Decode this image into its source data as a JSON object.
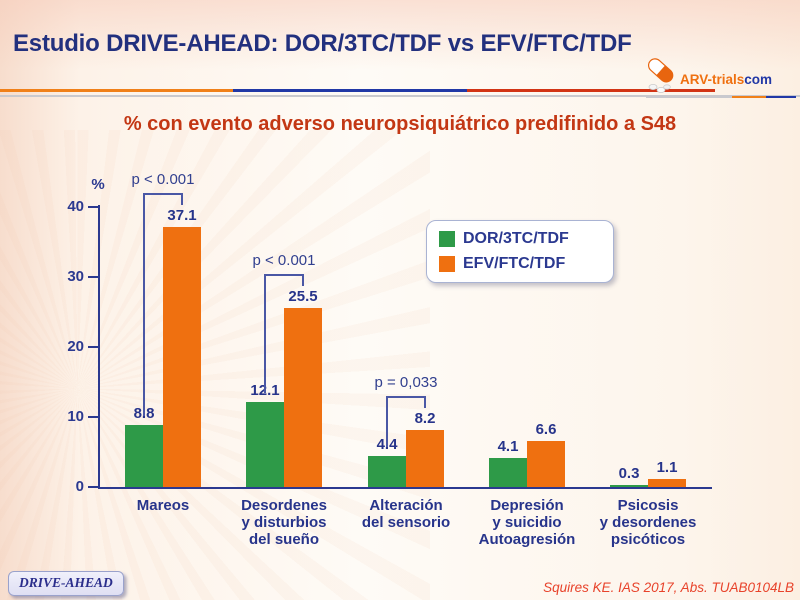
{
  "slide": {
    "title": "Estudio DRIVE-AHEAD: DOR/3TC/TDF vs EFV/FTC/TDF",
    "subtitle": "% con evento adverso neuropsiquiátrico predifinido a S48",
    "footer_badge": "DRIVE-AHEAD",
    "citation": "Squires KE. IAS 2017, Abs. TUAB0104LB",
    "logo": {
      "text_main": "ARV-trials",
      "text_suffix": "com"
    }
  },
  "colors": {
    "title_navy": "#22307E",
    "chart_navy": "#27348B",
    "axis_navy": "#2B3990",
    "subtitle_red": "#C33714",
    "citation_red": "#E8432B",
    "green_series": "#2E9A48",
    "orange_series": "#EF7010",
    "divider_orange": "#F08019",
    "divider_blue": "#2138A6",
    "divider_red": "#D23415"
  },
  "chart_data": {
    "type": "bar",
    "title": "% con evento adverso neuropsiquiátrico predifinido a S48",
    "ylabel": "%",
    "xlabel": "",
    "ylim": [
      0,
      40
    ],
    "yticks": [
      0,
      10,
      20,
      30,
      40
    ],
    "grid": false,
    "legend_position": "upper right",
    "categories": [
      "Mareos",
      "Desordenes\ny disturbios\ndel sueño",
      "Alteración\ndel sensorio",
      "Depresión\ny suicidio\nAutoagresión",
      "Psicosis\ny desordenes\npsicóticos"
    ],
    "series": [
      {
        "name": "DOR/3TC/TDF",
        "color": "#2E9A48",
        "values": [
          8.8,
          12.1,
          4.4,
          4.1,
          0.3
        ]
      },
      {
        "name": "EFV/FTC/TDF",
        "color": "#EF7010",
        "values": [
          37.1,
          25.5,
          8.2,
          6.6,
          1.1
        ]
      }
    ],
    "p_values": [
      "p < 0.001",
      "p < 0.001",
      "p = 0,033",
      null,
      null
    ]
  }
}
